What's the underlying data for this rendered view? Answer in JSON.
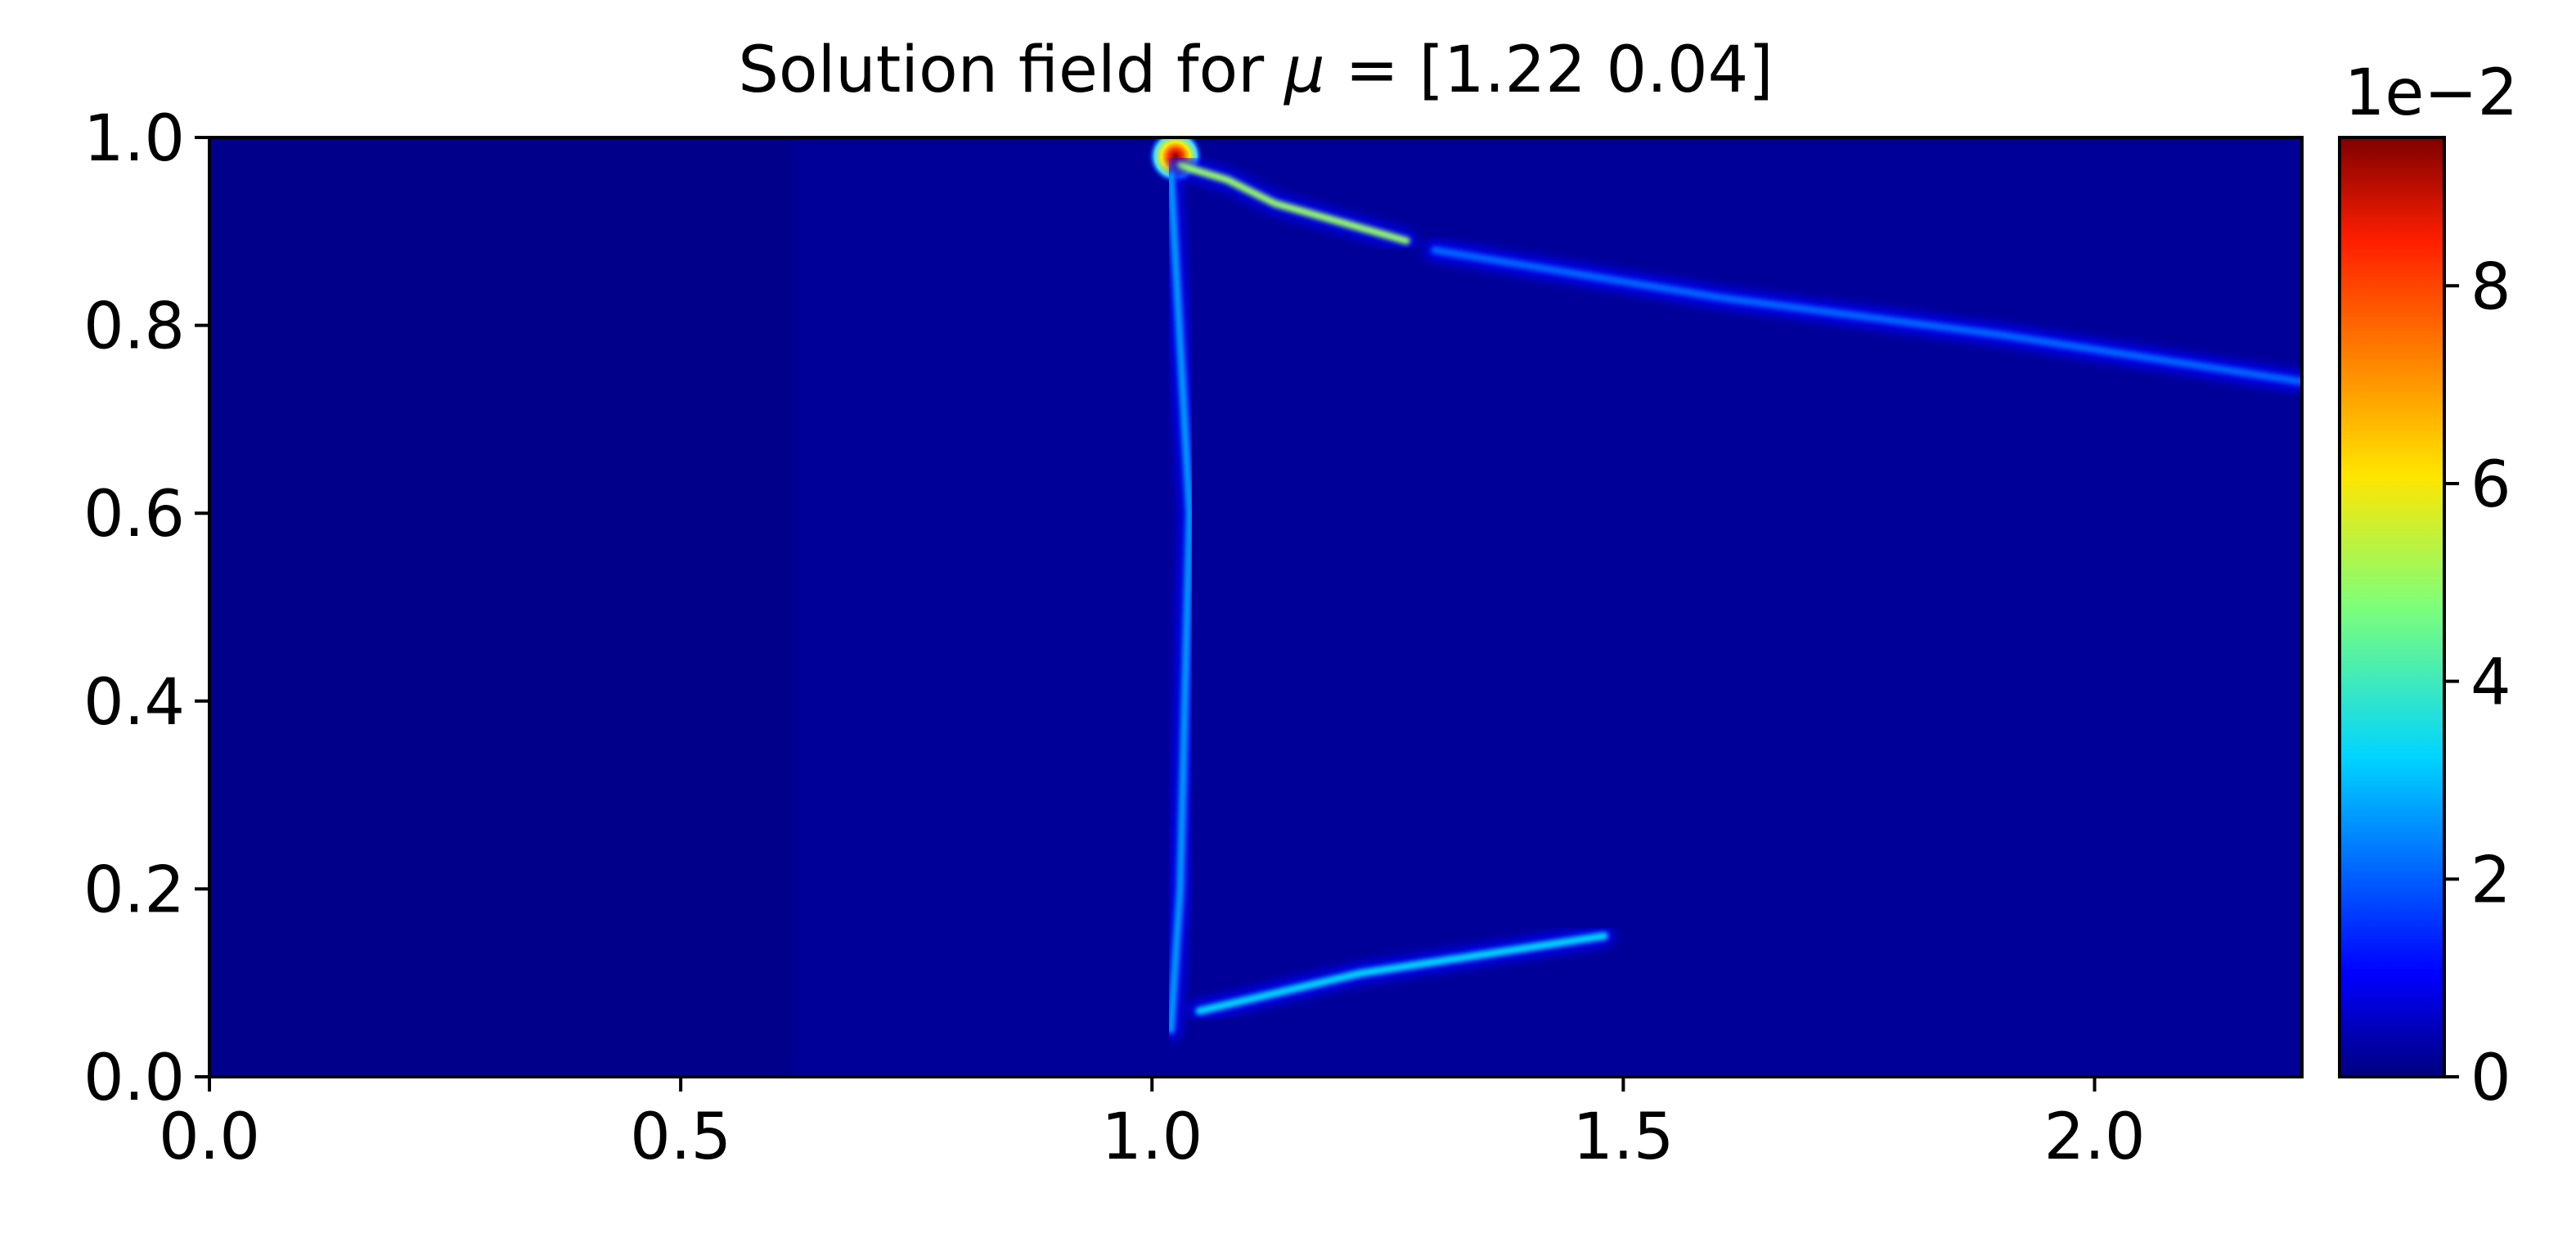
{
  "chart_data": {
    "type": "heatmap",
    "title": "Solution field for μ = [1.22 0.04]",
    "title_prefix": "Solution field for ",
    "title_symbol": "μ",
    "title_suffix": " = [1.22 0.04]",
    "xlim": [
      0.0,
      2.22
    ],
    "ylim": [
      0.0,
      1.0
    ],
    "x_ticks": [
      "0.0",
      "0.5",
      "1.0",
      "1.5",
      "2.0"
    ],
    "y_ticks": [
      "0.0",
      "0.2",
      "0.4",
      "0.6",
      "0.8",
      "1.0"
    ],
    "x_tick_values": [
      0.0,
      0.5,
      1.0,
      1.5,
      2.0
    ],
    "y_tick_values": [
      0.0,
      0.2,
      0.4,
      0.6,
      0.8,
      1.0
    ],
    "colormap": "jet",
    "background_color": "#00008b",
    "colorbar": {
      "range": [
        0,
        9.5
      ],
      "offset_label": "1e−2",
      "ticks": [
        "0",
        "2",
        "4",
        "6",
        "8"
      ],
      "tick_values": [
        0,
        2,
        4,
        6,
        8
      ]
    },
    "features": [
      {
        "name": "hot spot at top wall",
        "x": 1.025,
        "y": 0.98,
        "value": 9.5
      },
      {
        "name": "oblique shock from top wall",
        "points": [
          [
            1.03,
            0.97
          ],
          [
            1.08,
            0.955
          ],
          [
            1.13,
            0.93
          ],
          [
            1.27,
            0.89
          ]
        ],
        "value": 4.5
      },
      {
        "name": "vertical front",
        "points": [
          [
            1.02,
            0.96
          ],
          [
            1.04,
            0.6
          ],
          [
            1.03,
            0.2
          ],
          [
            1.02,
            0.05
          ]
        ],
        "value": 1.8
      },
      {
        "name": "lower reflected band",
        "points": [
          [
            1.05,
            0.07
          ],
          [
            1.22,
            0.11
          ],
          [
            1.48,
            0.15
          ]
        ],
        "value": 2.5
      },
      {
        "name": "upper right band",
        "points": [
          [
            1.3,
            0.88
          ],
          [
            1.6,
            0.83
          ],
          [
            1.9,
            0.79
          ],
          [
            2.22,
            0.74
          ]
        ],
        "value": 1.2
      }
    ]
  }
}
